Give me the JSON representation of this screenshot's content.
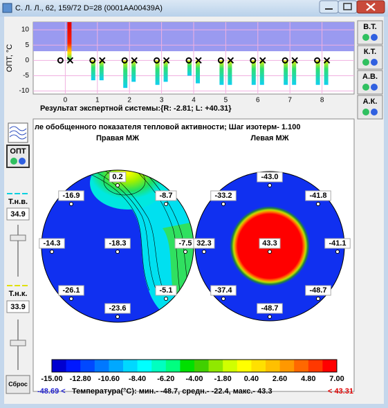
{
  "window": {
    "title": "С. Л. Л., 62, 159/72 D=28 (0001AA00439A)"
  },
  "chart_data": {
    "type": "bar",
    "y_label": "ОПТ, °С",
    "x": [
      0,
      1,
      2,
      3,
      4,
      5,
      6,
      7,
      8
    ],
    "xlim": [
      -1,
      9
    ],
    "xticks": [
      0,
      1,
      2,
      3,
      4,
      5,
      6,
      7,
      8
    ],
    "ylim": [
      -11,
      12.5
    ],
    "yticks": [
      -10,
      -5,
      0,
      5,
      10
    ],
    "band": [
      3,
      12.5
    ],
    "band_color": "#9a9af0",
    "grid": true,
    "series": [
      {
        "color": "#30e070",
        "values": [
          0,
          -6.5,
          -9,
          -8,
          -5,
          -8,
          -8,
          -8,
          -8
        ]
      },
      {
        "color": "#30e070",
        "values": [
          12.5,
          -6.5,
          -7,
          -7,
          -7.5,
          -8,
          -8,
          -8,
          -8
        ]
      }
    ]
  },
  "result": "Результат экспертной системы:{R: -2.81; L: +40.31}",
  "side_buttons": [
    "В.Т.",
    "К.Т.",
    "А.В.",
    "А.К."
  ],
  "left_panel": {
    "opt": "ОПТ",
    "t_upper_label": "Т.н.в.",
    "t_upper": "34.9",
    "t_lower_label": "Т.н.к.",
    "t_lower": "33.9",
    "reset": "Сброс"
  },
  "thermogram": {
    "header": "ле обобщенного показателя тепловой активности;   Шаг изотерм- 1.100",
    "right": {
      "title": "Правая МЖ",
      "points": [
        "0.2",
        "-16.9",
        "-8.7",
        "-14.3",
        "-18.3",
        "-7.5",
        "-26.1",
        "-5.1",
        "-23.6"
      ]
    },
    "left": {
      "title": "Левая МЖ",
      "points": [
        "-43.0",
        "-33.2",
        "-41.8",
        "32.3",
        "43.3",
        "-41.1",
        "-37.4",
        "-48.7",
        "-48.7"
      ]
    },
    "scale": {
      "labels": [
        "-15.00",
        "-12.80",
        "-10.60",
        "-8.40",
        "-6.20",
        "-4.00",
        "-1.80",
        "0.40",
        "2.60",
        "4.80",
        "7.00"
      ],
      "colors": [
        "#0000d0",
        "#0018ff",
        "#0048ff",
        "#0078ff",
        "#00a8ff",
        "#00d8ff",
        "#00ffff",
        "#00ffc0",
        "#00ff80",
        "#00e000",
        "#40d000",
        "#90e800",
        "#d0ff00",
        "#ffff00",
        "#ffe000",
        "#ffc000",
        "#ff9800",
        "#ff6800",
        "#ff3800",
        "#ff0000"
      ]
    },
    "footer": {
      "min_marker": "-48.69 <",
      "text": "Температура(°C): мин.- -48.7, средн.- -22.4, макс.- 43.3",
      "max_marker": "< 43.31"
    }
  }
}
